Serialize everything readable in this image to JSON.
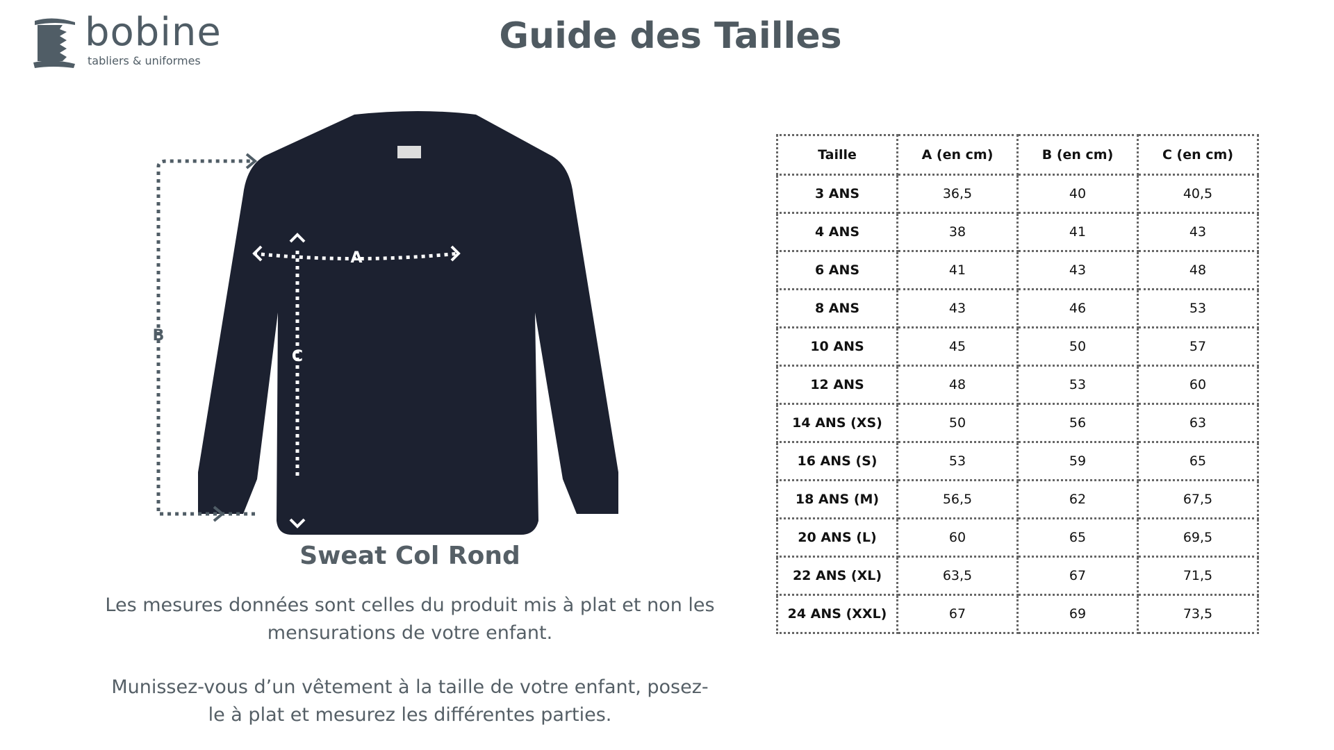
{
  "brand": {
    "name": "bobine",
    "tagline": "tabliers & uniformes"
  },
  "title": "Guide des Tailles",
  "product": {
    "name": "Sweat Col Rond",
    "labels": {
      "a": "A",
      "b": "B",
      "c": "C"
    },
    "garment_color": "#1c2130"
  },
  "notes": [
    "Les mesures données sont celles du produit mis à plat et non les mensurations de votre enfant.",
    "Munissez-vous d’un vêtement à la taille de votre enfant, posez-le à plat et mesurez les différentes parties."
  ],
  "table": {
    "headers": [
      "Taille",
      "A (en cm)",
      "B (en cm)",
      "C (en cm)"
    ],
    "rows": [
      [
        "3 ANS",
        "36,5",
        "40",
        "40,5"
      ],
      [
        "4 ANS",
        "38",
        "41",
        "43"
      ],
      [
        "6 ANS",
        "41",
        "43",
        "48"
      ],
      [
        "8 ANS",
        "43",
        "46",
        "53"
      ],
      [
        "10 ANS",
        "45",
        "50",
        "57"
      ],
      [
        "12 ANS",
        "48",
        "53",
        "60"
      ],
      [
        "14 ANS (XS)",
        "50",
        "56",
        "63"
      ],
      [
        "16 ANS (S)",
        "53",
        "59",
        "65"
      ],
      [
        "18 ANS (M)",
        "56,5",
        "62",
        "67,5"
      ],
      [
        "20 ANS (L)",
        "60",
        "65",
        "69,5"
      ],
      [
        "22 ANS (XL)",
        "63,5",
        "67",
        "71,5"
      ],
      [
        "24 ANS (XXL)",
        "67",
        "69",
        "73,5"
      ]
    ]
  }
}
